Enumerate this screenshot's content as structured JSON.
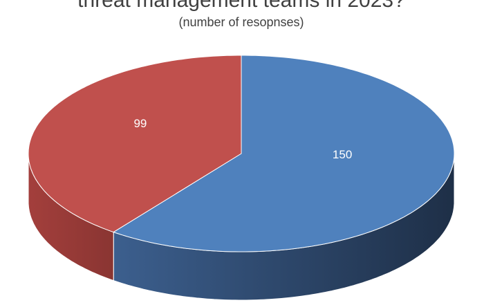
{
  "chart_data": {
    "type": "pie",
    "title": "threat management teams in 2023?",
    "subtitle": "(number of resopnses)",
    "values": [
      150,
      99
    ],
    "colors": [
      "#4f81bd",
      "#c0504d"
    ]
  }
}
